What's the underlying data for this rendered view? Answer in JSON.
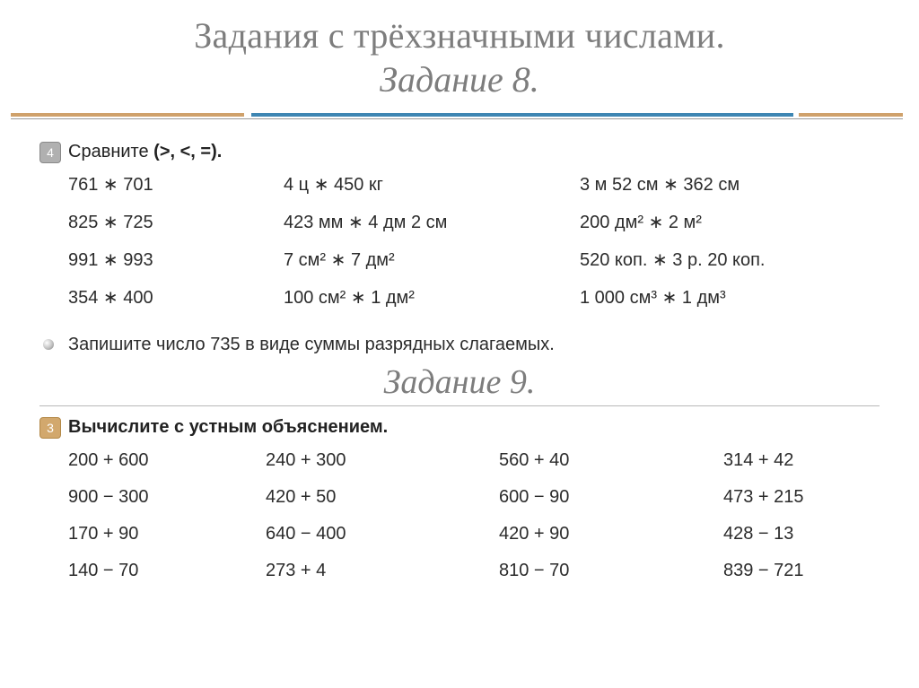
{
  "colors": {
    "text_muted": "#7d7d7d",
    "text_body": "#2b2b2b",
    "accent_tan": "#cfa16b",
    "accent_blue": "#3e86b3",
    "rule": "#9a9a9a",
    "badge_gray": "#b0b0b0",
    "badge_tan": "#d2a86d"
  },
  "typography": {
    "title_fontsize": 40,
    "subtitle_fontsize": 38,
    "body_fontsize": 20,
    "title_family": "Georgia",
    "body_family": "Verdana"
  },
  "title": {
    "line1": "Задания с трёхзначными числами.",
    "line2": "Задание 8."
  },
  "ex8": {
    "badge": "4",
    "heading_prefix": "Сравните ",
    "heading_suffix": "(>, <, =).",
    "rows": {
      "r1": {
        "c1": "761 ∗ 701",
        "c2": "4 ц ∗ 450 кг",
        "c3": "3 м 52 см ∗ 362 см"
      },
      "r2": {
        "c1": "825 ∗ 725",
        "c2": "423 мм ∗ 4 дм 2 см",
        "c3": "200 дм² ∗ 2 м²"
      },
      "r3": {
        "c1": "991 ∗ 993",
        "c2": "7 см² ∗ 7 дм²",
        "c3": "520 коп. ∗ 3 р. 20 коп."
      },
      "r4": {
        "c1": "354 ∗ 400",
        "c2": "100 см² ∗ 1 дм²",
        "c3": "1 000 см³ ∗ 1 дм³"
      }
    },
    "note": "Запишите число 735 в виде суммы разрядных слагаемых."
  },
  "midTitle": "Задание 9.",
  "ex9": {
    "badge": "3",
    "heading": "Вычислите с устным объяснением.",
    "rows": {
      "r1": {
        "c1": "200 + 600",
        "c2": "240 + 300",
        "c3": "560 + 40",
        "c4": "314 + 42"
      },
      "r2": {
        "c1": "900 − 300",
        "c2": "420 + 50",
        "c3": "600 − 90",
        "c4": "473 + 215"
      },
      "r3": {
        "c1": "170 + 90",
        "c2": "640 − 400",
        "c3": "420 + 90",
        "c4": "428 − 13"
      },
      "r4": {
        "c1": "140 − 70",
        "c2": "273 + 4",
        "c3": "810 − 70",
        "c4": "839 − 721"
      }
    }
  }
}
